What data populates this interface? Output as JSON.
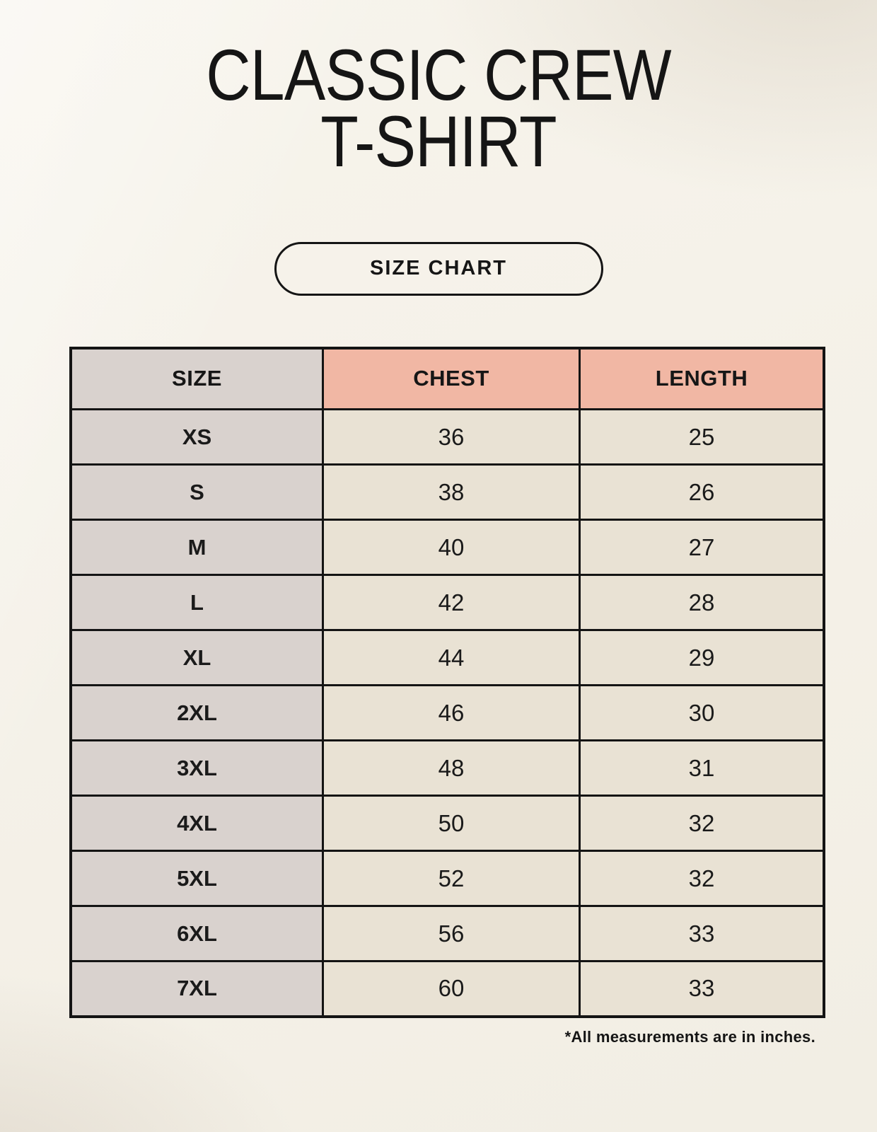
{
  "page": {
    "title_line1": "CLASSIC CREW",
    "title_line2": "T-SHIRT",
    "badge_label": "SIZE CHART",
    "footnote": "*All measurements are in inches."
  },
  "colors": {
    "background": "#f4f0e7",
    "header_accent": "#f1b7a4",
    "size_column_bg": "#d9d2ce",
    "data_cell_bg": "#e9e2d4",
    "border": "#141414",
    "text": "#161616"
  },
  "chart_data": {
    "type": "table",
    "title": "CLASSIC CREW T-SHIRT",
    "subtitle": "SIZE CHART",
    "columns": [
      "SIZE",
      "CHEST",
      "LENGTH"
    ],
    "units": "inches",
    "rows": [
      [
        "XS",
        "36",
        "25"
      ],
      [
        "S",
        "38",
        "26"
      ],
      [
        "M",
        "40",
        "27"
      ],
      [
        "L",
        "42",
        "28"
      ],
      [
        "XL",
        "44",
        "29"
      ],
      [
        "2XL",
        "46",
        "30"
      ],
      [
        "3XL",
        "48",
        "31"
      ],
      [
        "4XL",
        "50",
        "32"
      ],
      [
        "5XL",
        "52",
        "32"
      ],
      [
        "6XL",
        "56",
        "33"
      ],
      [
        "7XL",
        "60",
        "33"
      ]
    ]
  }
}
